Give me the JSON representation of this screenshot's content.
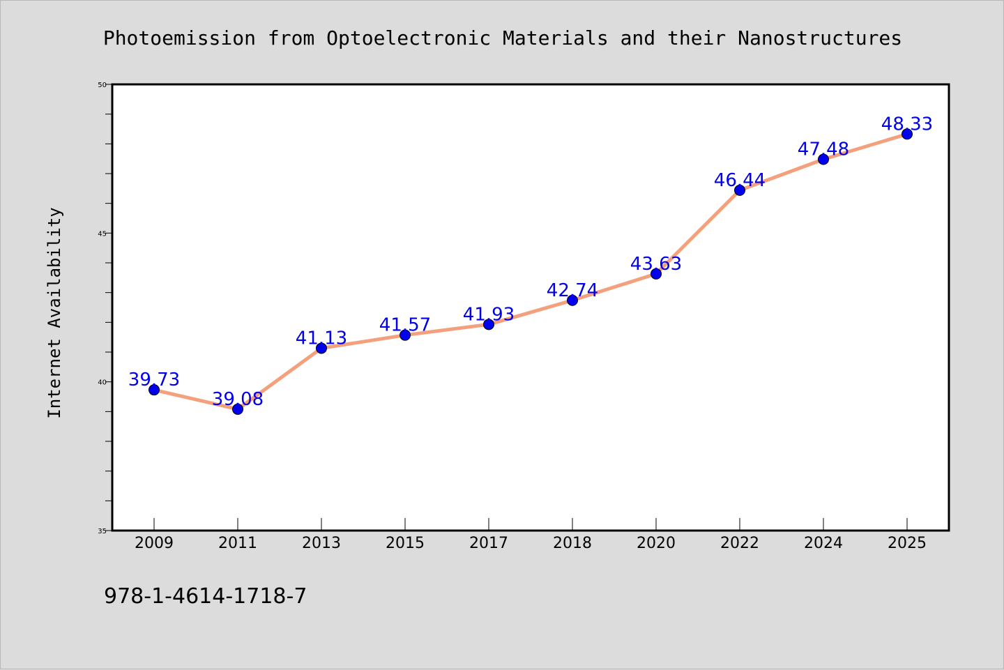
{
  "chart_data": {
    "type": "line",
    "title": "Photoemission from Optoelectronic Materials and their Nanostructures",
    "xlabel": "",
    "ylabel": "Internet Availability",
    "categories": [
      "2009",
      "2011",
      "2013",
      "2015",
      "2017",
      "2018",
      "2020",
      "2022",
      "2024",
      "2025"
    ],
    "series": [
      {
        "values": [
          39.73,
          39.08,
          41.13,
          41.57,
          41.93,
          42.74,
          43.63,
          46.44,
          47.48,
          48.33
        ],
        "labels": [
          "39.73",
          "39.08",
          "41.13",
          "41.57",
          "41.93",
          "42.74",
          "43.63",
          "46.44",
          "47.48",
          "48.33"
        ],
        "line_color": "#f4a07c",
        "marker_color": "#0000ee"
      }
    ],
    "ylim": [
      35,
      50
    ],
    "yticks": [
      "35",
      "40",
      "45",
      "50"
    ],
    "grid": false,
    "legend": "none",
    "label_color": "#0000ee",
    "footnote": "978-1-4614-1718-7"
  }
}
